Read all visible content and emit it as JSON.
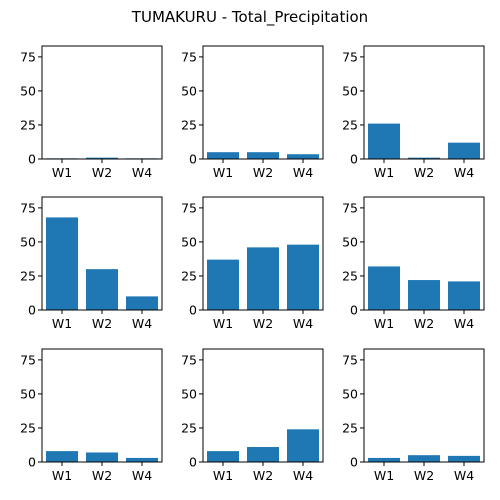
{
  "title": "TUMAKURU - Total_Precipitation",
  "colors": {
    "bar": "#1f77b4"
  },
  "chart_data": [
    {
      "type": "bar",
      "categories": [
        "W1",
        "W2",
        "W4"
      ],
      "values": [
        0.5,
        1.0,
        0.5
      ],
      "ylim": [
        0,
        83
      ],
      "yticks": [
        "0",
        "25",
        "50",
        "75"
      ],
      "xlabel": "",
      "ylabel": ""
    },
    {
      "type": "bar",
      "categories": [
        "W1",
        "W2",
        "W4"
      ],
      "values": [
        5,
        5,
        3.5
      ],
      "ylim": [
        0,
        83
      ],
      "yticks": [
        "0",
        "25",
        "50",
        "75"
      ],
      "xlabel": "",
      "ylabel": ""
    },
    {
      "type": "bar",
      "categories": [
        "W1",
        "W2",
        "W4"
      ],
      "values": [
        26,
        1,
        12
      ],
      "ylim": [
        0,
        83
      ],
      "yticks": [
        "0",
        "25",
        "50",
        "75"
      ],
      "xlabel": "",
      "ylabel": ""
    },
    {
      "type": "bar",
      "categories": [
        "W1",
        "W2",
        "W4"
      ],
      "values": [
        68,
        30,
        10
      ],
      "ylim": [
        0,
        83
      ],
      "yticks": [
        "0",
        "25",
        "50",
        "75"
      ],
      "xlabel": "",
      "ylabel": ""
    },
    {
      "type": "bar",
      "categories": [
        "W1",
        "W2",
        "W4"
      ],
      "values": [
        37,
        46,
        48
      ],
      "ylim": [
        0,
        83
      ],
      "yticks": [
        "0",
        "25",
        "50",
        "75"
      ],
      "xlabel": "",
      "ylabel": ""
    },
    {
      "type": "bar",
      "categories": [
        "W1",
        "W2",
        "W4"
      ],
      "values": [
        32,
        22,
        21
      ],
      "ylim": [
        0,
        83
      ],
      "yticks": [
        "0",
        "25",
        "50",
        "75"
      ],
      "xlabel": "",
      "ylabel": ""
    },
    {
      "type": "bar",
      "categories": [
        "W1",
        "W2",
        "W4"
      ],
      "values": [
        8,
        7,
        3
      ],
      "ylim": [
        0,
        83
      ],
      "yticks": [
        "0",
        "25",
        "50",
        "75"
      ],
      "xlabel": "",
      "ylabel": ""
    },
    {
      "type": "bar",
      "categories": [
        "W1",
        "W2",
        "W4"
      ],
      "values": [
        8,
        11,
        24
      ],
      "ylim": [
        0,
        83
      ],
      "yticks": [
        "0",
        "25",
        "50",
        "75"
      ],
      "xlabel": "",
      "ylabel": ""
    },
    {
      "type": "bar",
      "categories": [
        "W1",
        "W2",
        "W4"
      ],
      "values": [
        3,
        5,
        4.5
      ],
      "ylim": [
        0,
        83
      ],
      "yticks": [
        "0",
        "25",
        "50",
        "75"
      ],
      "xlabel": "",
      "ylabel": ""
    }
  ]
}
